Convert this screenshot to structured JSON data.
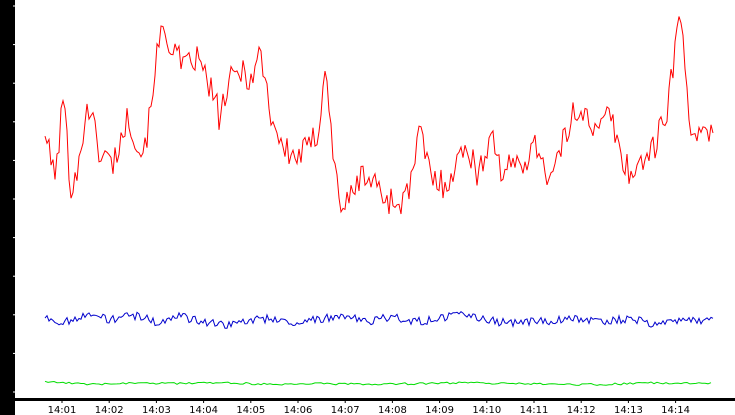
{
  "chart_data": {
    "type": "line",
    "title": "",
    "xlabel": "",
    "ylabel": "",
    "ylim": [
      0,
      23058
    ],
    "y_ticks": [
      "0",
      "2305",
      "4611",
      "6917",
      "9223",
      "11529",
      "13834",
      "16140",
      "18446",
      "20752",
      "23058"
    ],
    "x_ticks": [
      "14:01",
      "14:02",
      "14:03",
      "14:04",
      "14:05",
      "14:06",
      "14:07",
      "14:08",
      "14:09",
      "14:10",
      "14:11",
      "14:12",
      "14:13",
      "14:14"
    ],
    "x_range": [
      "14:00:38",
      "14:14:48"
    ],
    "grid": false,
    "legend": "none",
    "colors": {
      "background": "#ffffff",
      "axis_strip": "#000000",
      "axis_text": "#ffffff",
      "tick_text": "#000000"
    },
    "series": [
      {
        "color": "#ff0000",
        "points": [
          [
            "14:00:38",
            15800
          ],
          [
            "14:00:45",
            13800
          ],
          [
            "14:00:53",
            13200
          ],
          [
            "14:01:02",
            18000
          ],
          [
            "14:01:10",
            12300
          ],
          [
            "14:01:22",
            13500
          ],
          [
            "14:01:32",
            17500
          ],
          [
            "14:01:48",
            14300
          ],
          [
            "14:02:05",
            13700
          ],
          [
            "14:02:25",
            16500
          ],
          [
            "14:02:40",
            14200
          ],
          [
            "14:02:50",
            15800
          ],
          [
            "14:02:58",
            19500
          ],
          [
            "14:03:08",
            21600
          ],
          [
            "14:03:20",
            20700
          ],
          [
            "14:03:35",
            19200
          ],
          [
            "14:03:50",
            20000
          ],
          [
            "14:04:05",
            18600
          ],
          [
            "14:04:20",
            16500
          ],
          [
            "14:04:35",
            18600
          ],
          [
            "14:04:50",
            19300
          ],
          [
            "14:05:02",
            18600
          ],
          [
            "14:05:12",
            20500
          ],
          [
            "14:05:25",
            16700
          ],
          [
            "14:05:40",
            14600
          ],
          [
            "14:05:55",
            14000
          ],
          [
            "14:06:10",
            14400
          ],
          [
            "14:06:25",
            15400
          ],
          [
            "14:06:35",
            19800
          ],
          [
            "14:06:45",
            13800
          ],
          [
            "14:06:55",
            11200
          ],
          [
            "14:07:05",
            11300
          ],
          [
            "14:07:20",
            13000
          ],
          [
            "14:07:35",
            12600
          ],
          [
            "14:07:50",
            11700
          ],
          [
            "14:08:05",
            11200
          ],
          [
            "14:08:20",
            11800
          ],
          [
            "14:08:35",
            15500
          ],
          [
            "14:08:50",
            12800
          ],
          [
            "14:09:05",
            12400
          ],
          [
            "14:09:20",
            13400
          ],
          [
            "14:09:35",
            14900
          ],
          [
            "14:09:50",
            12700
          ],
          [
            "14:10:05",
            15800
          ],
          [
            "14:10:20",
            12900
          ],
          [
            "14:10:35",
            13600
          ],
          [
            "14:10:50",
            14000
          ],
          [
            "14:11:05",
            14800
          ],
          [
            "14:11:20",
            12600
          ],
          [
            "14:11:35",
            14500
          ],
          [
            "14:11:50",
            16600
          ],
          [
            "14:12:05",
            17100
          ],
          [
            "14:12:20",
            15200
          ],
          [
            "14:12:35",
            16900
          ],
          [
            "14:12:50",
            14200
          ],
          [
            "14:13:05",
            12900
          ],
          [
            "14:13:20",
            14100
          ],
          [
            "14:13:35",
            14700
          ],
          [
            "14:13:50",
            17200
          ],
          [
            "14:14:05",
            22600
          ],
          [
            "14:14:20",
            15800
          ],
          [
            "14:14:35",
            15000
          ],
          [
            "14:14:48",
            15400
          ]
        ]
      },
      {
        "color": "#0000cc",
        "points": [
          [
            "14:00:38",
            4500
          ],
          [
            "14:01:00",
            4100
          ],
          [
            "14:01:30",
            4700
          ],
          [
            "14:02:00",
            4300
          ],
          [
            "14:02:30",
            4600
          ],
          [
            "14:03:00",
            4200
          ],
          [
            "14:03:30",
            4500
          ],
          [
            "14:04:00",
            4200
          ],
          [
            "14:04:30",
            4000
          ],
          [
            "14:05:00",
            4300
          ],
          [
            "14:05:30",
            4400
          ],
          [
            "14:06:00",
            4100
          ],
          [
            "14:06:30",
            4400
          ],
          [
            "14:07:00",
            4500
          ],
          [
            "14:07:30",
            4200
          ],
          [
            "14:08:00",
            4500
          ],
          [
            "14:08:30",
            4200
          ],
          [
            "14:09:00",
            4400
          ],
          [
            "14:09:30",
            4600
          ],
          [
            "14:10:00",
            4300
          ],
          [
            "14:10:30",
            4100
          ],
          [
            "14:11:00",
            4200
          ],
          [
            "14:11:30",
            4300
          ],
          [
            "14:12:00",
            4400
          ],
          [
            "14:12:30",
            4200
          ],
          [
            "14:13:00",
            4400
          ],
          [
            "14:13:30",
            4100
          ],
          [
            "14:14:00",
            4200
          ],
          [
            "14:14:30",
            4300
          ],
          [
            "14:14:48",
            4200
          ]
        ]
      },
      {
        "color": "#00dd00",
        "points": [
          [
            "14:00:38",
            650
          ],
          [
            "14:01:30",
            450
          ],
          [
            "14:02:30",
            550
          ],
          [
            "14:03:30",
            500
          ],
          [
            "14:04:30",
            550
          ],
          [
            "14:05:30",
            450
          ],
          [
            "14:06:30",
            500
          ],
          [
            "14:07:30",
            450
          ],
          [
            "14:08:30",
            500
          ],
          [
            "14:09:30",
            550
          ],
          [
            "14:10:30",
            500
          ],
          [
            "14:11:30",
            450
          ],
          [
            "14:12:30",
            450
          ],
          [
            "14:13:30",
            550
          ],
          [
            "14:14:48",
            500
          ]
        ]
      }
    ]
  }
}
